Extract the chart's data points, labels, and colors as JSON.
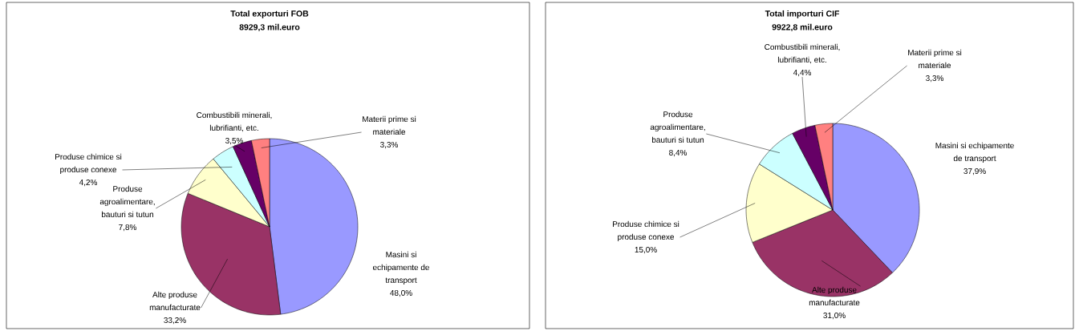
{
  "chart_data": [
    {
      "type": "pie",
      "title": "Total exporturi FOB",
      "subtitle": "8929,3 mil.euro",
      "categories": [
        "Masini si echipamente de transport",
        "Alte produse manufacturate",
        "Produse agroalimentare, bauturi si tutun",
        "Produse chimice si produse conexe",
        "Combustibili minerali, lubrifianti, etc.",
        "Materii prime si materiale"
      ],
      "values": [
        48.0,
        33.2,
        7.8,
        4.2,
        3.5,
        3.3
      ],
      "value_labels": [
        "48,0%",
        "33,2%",
        "7,8%",
        "4,2%",
        "3,5%",
        "3,3%"
      ],
      "colors": [
        "#9999ff",
        "#993366",
        "#ffffcc",
        "#ccffff",
        "#660066",
        "#ff8080"
      ]
    },
    {
      "type": "pie",
      "title": "Total importuri CIF",
      "subtitle": "9922,8 mil.euro",
      "categories": [
        "Masini si echipamente de transport",
        "Alte produse manufacturate",
        "Produse chimice si produse conexe",
        "Produse agroalimentare, bauturi si tutun",
        "Combustibili minerali, lubrifianti, etc.",
        "Materii prime si materiale"
      ],
      "values": [
        37.9,
        31.0,
        15.0,
        8.4,
        4.4,
        3.3
      ],
      "value_labels": [
        "37,9%",
        "31,0%",
        "15,0%",
        "8,4%",
        "4,4%",
        "3,3%"
      ],
      "colors": [
        "#9999ff",
        "#993366",
        "#ffffcc",
        "#ccffff",
        "#660066",
        "#ff8080"
      ]
    }
  ]
}
